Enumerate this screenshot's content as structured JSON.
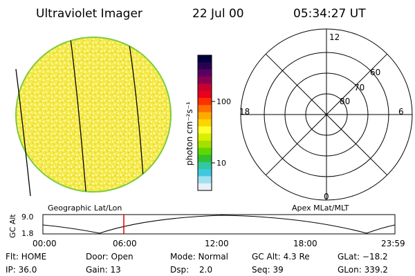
{
  "header": {
    "title": "Ultraviolet Imager",
    "date": "22 Jul 00",
    "time": "05:34:27 UT"
  },
  "colorbar": {
    "unit_label": "photon cm⁻²s⁻¹",
    "tick_labels": [
      "100",
      "10"
    ],
    "colors": [
      "#000040",
      "#2a0050",
      "#5a0064",
      "#8a0050",
      "#c80030",
      "#e8001e",
      "#ff3000",
      "#ff7000",
      "#ffaa00",
      "#ffd400",
      "#ffff30",
      "#d8f000",
      "#a6e000",
      "#60d800",
      "#30c030",
      "#30c8a0",
      "#40c8e0",
      "#a0e0f0",
      "#e8f0f8"
    ],
    "colors_top_to_bottom": true
  },
  "images": {
    "left_label": "Geographic Lat/Lon",
    "right_label": "Apex MLat/MLT",
    "disk_fill": "#f4ea4a",
    "disk_speckle": "#fff8a8",
    "disk_rim": "#7ecb3a"
  },
  "polar_plot": {
    "mlt_labels": {
      "top": "12",
      "left": "18",
      "right": "6",
      "bottom": "0"
    },
    "lat_labels": [
      "80",
      "70",
      "60"
    ]
  },
  "altitude_strip": {
    "ylabel": "GC Alt",
    "y_ticks": [
      "9.0",
      "1.8"
    ],
    "x_ticks": [
      "00:00",
      "06:00",
      "12:00",
      "18:00",
      "23:59"
    ],
    "marker_time": "05:34",
    "marker_color": "#dd0000"
  },
  "info": {
    "flt": "Flt: HOME",
    "door": "Door: Open",
    "mode": "Mode: Normal",
    "gc_alt": "GC Alt: 4.3 Re",
    "glat": "GLat: −18.2",
    "ip": "IP: 36.0",
    "gain": "Gain: 13",
    "dsp_label": "Dsp:",
    "dsp_value": "2.0",
    "seq": "Seq: 39",
    "glon": "GLon: 339.2"
  }
}
